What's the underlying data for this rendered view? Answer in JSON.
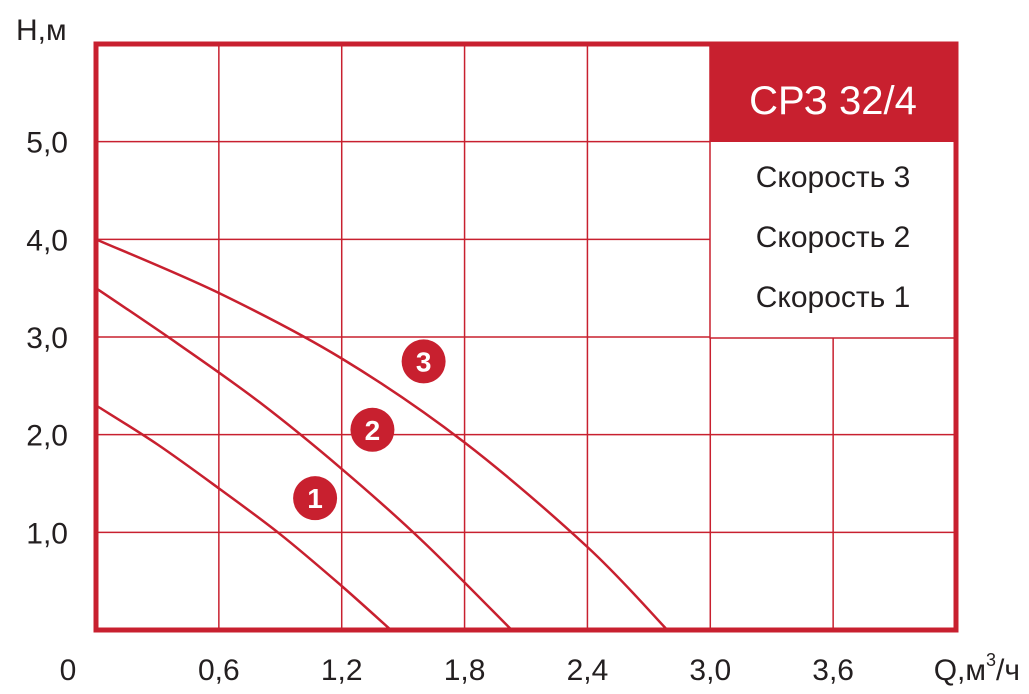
{
  "colors": {
    "accent": "#c8202f",
    "grid": "#c8202f",
    "text": "#231f20",
    "background": "#ffffff"
  },
  "chart_data": {
    "type": "line",
    "title": "СРЗ 32/4",
    "xlabel": "Q,м³/ч",
    "ylabel": "Н,м",
    "xlim": [
      0,
      4.2
    ],
    "ylim": [
      0,
      6.0
    ],
    "x_tick_labels": [
      {
        "value": 0,
        "label": "0"
      },
      {
        "value": 0.6,
        "label": "0,6"
      },
      {
        "value": 1.2,
        "label": "1,2"
      },
      {
        "value": 1.8,
        "label": "1,8"
      },
      {
        "value": 2.4,
        "label": "2,4"
      },
      {
        "value": 3.0,
        "label": "3,0"
      },
      {
        "value": 3.6,
        "label": "3,6"
      }
    ],
    "y_tick_labels": [
      {
        "value": 1.0,
        "label": "1,0"
      },
      {
        "value": 2.0,
        "label": "2,0"
      },
      {
        "value": 3.0,
        "label": "3,0"
      },
      {
        "value": 4.0,
        "label": "4,0"
      },
      {
        "value": 5.0,
        "label": "5,0"
      }
    ],
    "grid": true,
    "legend": [
      "Скорость 3",
      "Скорость 2",
      "Скорость 1"
    ],
    "legend_position": "top-right",
    "series": [
      {
        "marker": "3",
        "marker_at": [
          1.6,
          2.75
        ],
        "x": [
          0,
          0.6,
          1.2,
          1.8,
          2.4,
          2.79
        ],
        "y": [
          4.0,
          3.45,
          2.78,
          1.92,
          0.85,
          0.0
        ]
      },
      {
        "marker": "2",
        "marker_at": [
          1.35,
          2.05
        ],
        "x": [
          0,
          0.4,
          0.8,
          1.2,
          1.6,
          2.03
        ],
        "y": [
          3.5,
          2.93,
          2.33,
          1.65,
          0.9,
          0.0
        ]
      },
      {
        "marker": "1",
        "marker_at": [
          1.07,
          1.35
        ],
        "x": [
          0,
          0.3,
          0.6,
          0.9,
          1.2,
          1.44
        ],
        "y": [
          2.3,
          1.9,
          1.45,
          0.98,
          0.45,
          0.0
        ]
      }
    ]
  }
}
